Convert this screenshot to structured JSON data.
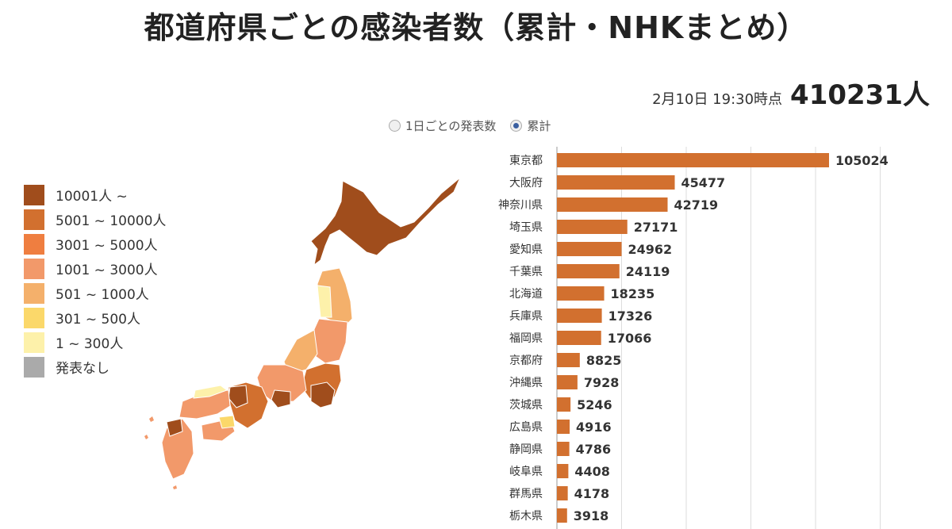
{
  "title": "都道府県ごとの感染者数（累計・NHKまとめ）",
  "as_of": "2月10日 19:30時点",
  "total": "410231人",
  "radio_options": [
    {
      "label": "1日ごとの発表数",
      "selected": false
    },
    {
      "label": "累計",
      "selected": true
    }
  ],
  "legend": [
    {
      "label": "10001人 ~",
      "color": "#a04d1c"
    },
    {
      "label": "5001 ~ 10000人",
      "color": "#d2702f"
    },
    {
      "label": "3001 ~ 5000人",
      "color": "#ef7e40"
    },
    {
      "label": "1001 ~ 3000人",
      "color": "#f2996a"
    },
    {
      "label": "501 ~ 1000人",
      "color": "#f4b06b"
    },
    {
      "label": "301 ~ 500人",
      "color": "#fbd86a"
    },
    {
      "label": "1 ~ 300人",
      "color": "#fdf1aa"
    },
    {
      "label": "発表なし",
      "color": "#aaaaaa"
    }
  ],
  "chart_data": {
    "type": "bar",
    "orientation": "horizontal",
    "categories": [
      "東京都",
      "大阪府",
      "神奈川県",
      "埼玉県",
      "愛知県",
      "千葉県",
      "北海道",
      "兵庫県",
      "福岡県",
      "京都府",
      "沖縄県",
      "茨城県",
      "広島県",
      "静岡県",
      "岐阜県",
      "群馬県",
      "栃木県"
    ],
    "values": [
      105024,
      45477,
      42719,
      27171,
      24962,
      24119,
      18235,
      17326,
      17066,
      8825,
      7928,
      5246,
      4916,
      4786,
      4408,
      4178,
      3918
    ],
    "bar_color": "#d2702f",
    "xlim": [
      0,
      130000
    ],
    "grid": true
  }
}
